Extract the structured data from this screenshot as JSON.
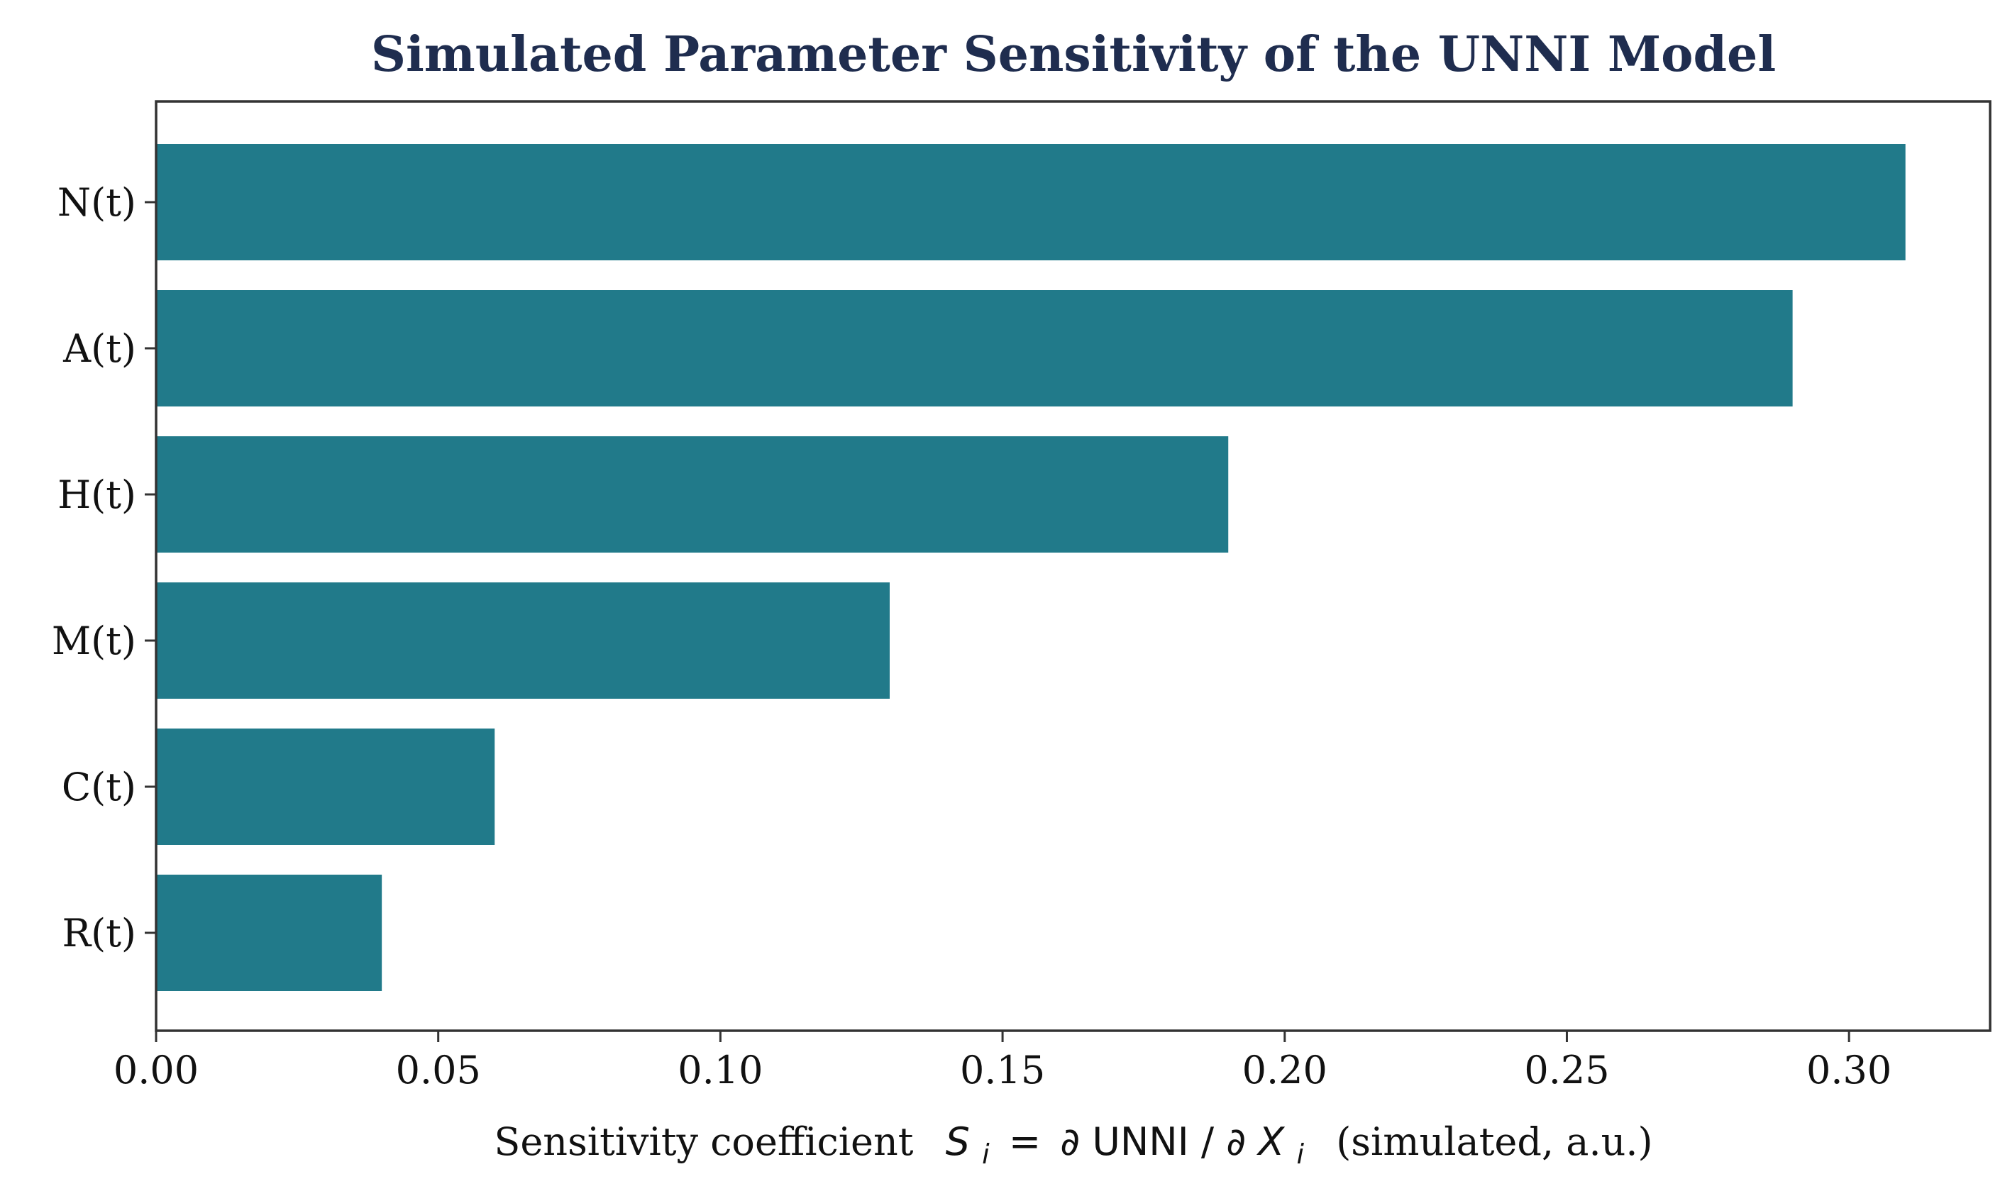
{
  "chart_data": {
    "type": "bar",
    "orientation": "horizontal",
    "title": "Simulated Parameter Sensitivity of the UNNI Model",
    "categories": [
      "N(t)",
      "A(t)",
      "H(t)",
      "M(t)",
      "C(t)",
      "R(t)"
    ],
    "values": [
      0.31,
      0.29,
      0.19,
      0.13,
      0.06,
      0.04
    ],
    "xlabel": {
      "prefix": "Sensitivity coefficient",
      "symbol": "S",
      "subscript": "i",
      "equals": "=",
      "partial": "∂",
      "numerator": "UNNI",
      "slash": "/",
      "denominator": "X",
      "suffix": "(simulated, a.u.)"
    },
    "ylabel": "",
    "xlim": [
      0,
      0.325
    ],
    "xticks": [
      0.0,
      0.05,
      0.1,
      0.15,
      0.2,
      0.25,
      0.3
    ],
    "xtick_labels": [
      "0.00",
      "0.05",
      "0.10",
      "0.15",
      "0.20",
      "0.25",
      "0.30"
    ],
    "grid": false,
    "legend": "none",
    "bar_color": "#217a8a"
  }
}
